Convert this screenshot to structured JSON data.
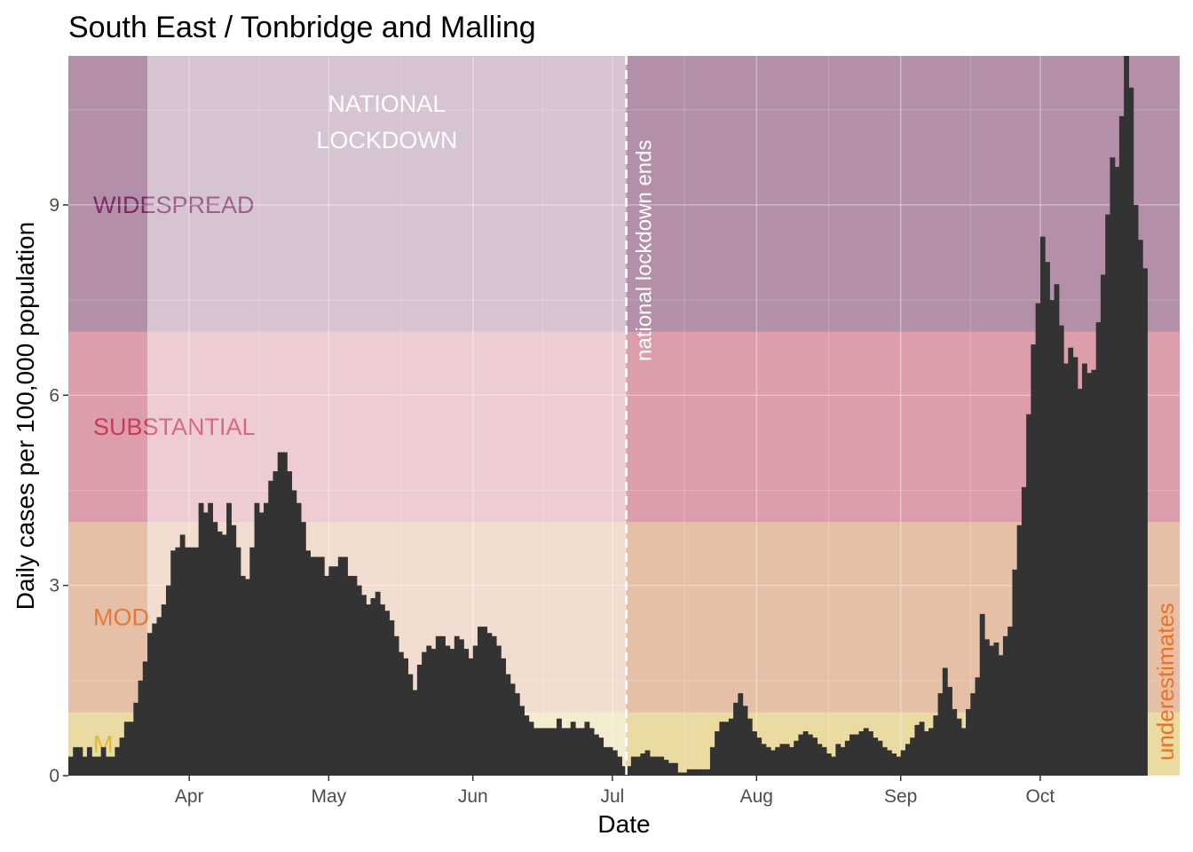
{
  "chart_data": {
    "type": "bar",
    "title": "South East / Tonbridge and Malling",
    "xlabel": "Date",
    "ylabel": "Daily cases per 100,000 population",
    "x_range": [
      "2020-03-06",
      "2020-10-31"
    ],
    "ylim": [
      0,
      11.35
    ],
    "y_ticks": [
      0,
      3,
      6,
      9
    ],
    "x_ticks": [
      {
        "date": "2020-04-01",
        "label": "Apr"
      },
      {
        "date": "2020-05-01",
        "label": "May"
      },
      {
        "date": "2020-06-01",
        "label": "Jun"
      },
      {
        "date": "2020-07-01",
        "label": "Jul"
      },
      {
        "date": "2020-08-01",
        "label": "Aug"
      },
      {
        "date": "2020-09-01",
        "label": "Sep"
      },
      {
        "date": "2020-10-01",
        "label": "Oct"
      }
    ],
    "grid": true,
    "bands": [
      {
        "name": "MINIMAL",
        "visible_text": "M",
        "from": 0,
        "to": 1,
        "color": "#e8c84a"
      },
      {
        "name": "MODERATE",
        "visible_text": "MOD",
        "from": 1,
        "to": 4,
        "color": "#e08a55"
      },
      {
        "name": "SUBSTANTIAL",
        "visible_text": "SUBSTANTIAL",
        "from": 4,
        "to": 7,
        "color": "#cc4060"
      },
      {
        "name": "WIDESPREAD",
        "visible_text": "WIDESPREAD",
        "from": 7,
        "to": 11.35,
        "color": "#6e1e5a"
      }
    ],
    "band_text_colors": {
      "WIDESPREAD": "#7a2a62",
      "SUBSTANTIAL": "#c83a55",
      "MODERATE": "#e07a3a",
      "MINIMAL": "#e8b830"
    },
    "lockdown_period": {
      "start": "2020-03-23",
      "end": "2020-07-04",
      "label_line1": "NATIONAL",
      "label_line2": "LOCKDOWN"
    },
    "event_line": {
      "date": "2020-07-04",
      "label": "national lockdown ends"
    },
    "underestimates_label": "underestimates",
    "bar_color": "#333333",
    "start_date": "2020-03-06",
    "values": [
      0.3,
      0.45,
      0.45,
      0.3,
      0.45,
      0.3,
      0.3,
      0.45,
      0.3,
      0.3,
      0.45,
      0.6,
      0.85,
      0.85,
      1.15,
      1.5,
      1.8,
      2.25,
      2.4,
      2.5,
      2.7,
      3.0,
      3.55,
      3.6,
      3.8,
      3.6,
      3.6,
      3.6,
      4.3,
      4.15,
      4.3,
      4.0,
      3.85,
      3.8,
      4.3,
      3.95,
      3.6,
      3.15,
      3.1,
      3.6,
      4.3,
      4.15,
      4.3,
      4.65,
      4.8,
      5.1,
      5.1,
      4.8,
      4.5,
      4.3,
      4.0,
      3.55,
      3.45,
      3.45,
      3.45,
      3.15,
      3.3,
      3.3,
      3.45,
      3.45,
      3.15,
      3.15,
      3.0,
      2.85,
      2.7,
      2.8,
      2.9,
      2.7,
      2.6,
      2.45,
      2.2,
      1.95,
      1.85,
      1.6,
      1.35,
      1.75,
      1.95,
      2.05,
      2.0,
      2.2,
      2.2,
      2.05,
      2.0,
      2.2,
      2.15,
      2.0,
      1.85,
      2.05,
      2.35,
      2.35,
      2.25,
      2.2,
      2.05,
      1.85,
      1.6,
      1.45,
      1.3,
      1.1,
      0.95,
      0.85,
      0.75,
      0.75,
      0.75,
      0.75,
      0.75,
      0.9,
      0.75,
      0.75,
      0.85,
      0.75,
      0.75,
      0.85,
      0.75,
      0.65,
      0.6,
      0.45,
      0.45,
      0.4,
      0.3,
      0.15,
      0.15,
      0.3,
      0.3,
      0.35,
      0.4,
      0.3,
      0.3,
      0.3,
      0.25,
      0.2,
      0.2,
      0.05,
      0.05,
      0.1,
      0.1,
      0.1,
      0.1,
      0.1,
      0.45,
      0.7,
      0.85,
      0.85,
      0.9,
      1.15,
      1.3,
      1.1,
      0.9,
      0.7,
      0.6,
      0.5,
      0.45,
      0.4,
      0.45,
      0.5,
      0.5,
      0.45,
      0.55,
      0.65,
      0.7,
      0.65,
      0.6,
      0.5,
      0.45,
      0.35,
      0.3,
      0.5,
      0.45,
      0.55,
      0.65,
      0.65,
      0.7,
      0.75,
      0.7,
      0.6,
      0.55,
      0.45,
      0.4,
      0.35,
      0.3,
      0.4,
      0.5,
      0.6,
      0.8,
      0.85,
      0.7,
      0.75,
      0.95,
      1.3,
      1.7,
      1.4,
      1.05,
      0.9,
      0.75,
      1.05,
      1.3,
      1.55,
      2.55,
      2.15,
      2.05,
      2.1,
      1.9,
      2.2,
      2.35,
      3.25,
      3.95,
      4.55,
      5.7,
      6.8,
      7.45,
      8.5,
      8.1,
      7.5,
      7.75,
      7.1,
      6.5,
      6.75,
      6.6,
      6.1,
      6.5,
      6.35,
      6.4,
      7.15,
      7.9,
      8.85,
      9.75,
      9.6,
      10.4,
      11.35,
      10.85,
      9.0,
      8.45,
      8.0
    ]
  }
}
